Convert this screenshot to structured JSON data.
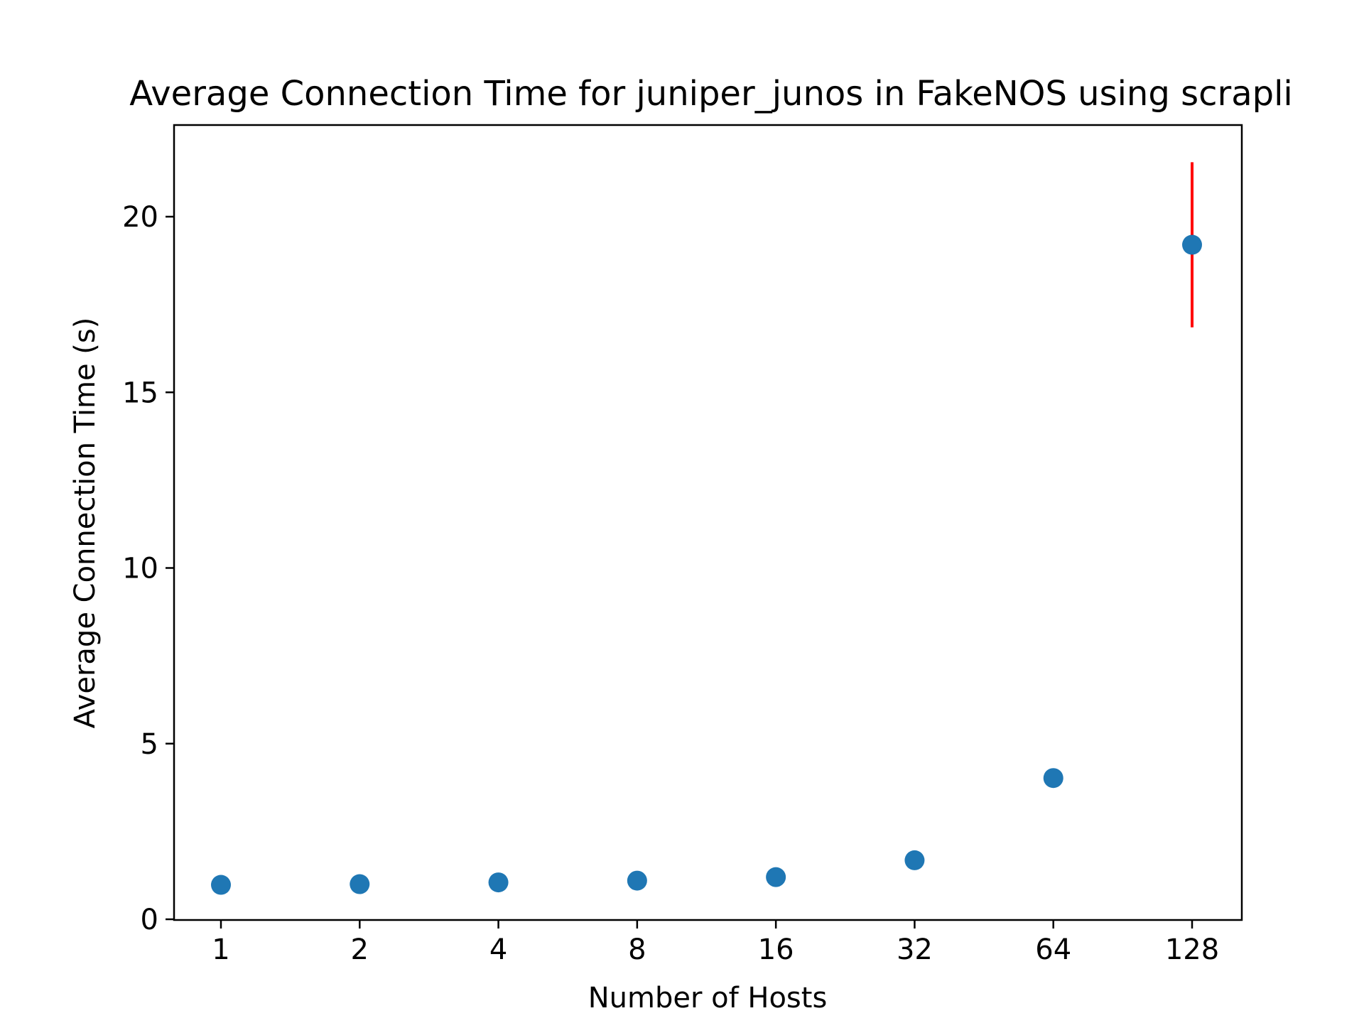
{
  "chart_data": {
    "type": "scatter",
    "title": "Average Connection Time for juniper_junos in FakeNOS using scrapli",
    "xlabel": "Number of Hosts",
    "ylabel": "Average Connection Time (s)",
    "x_scale": "log2",
    "x_ticks": [
      "1",
      "2",
      "4",
      "8",
      "16",
      "32",
      "64",
      "128"
    ],
    "y_ticks": [
      "0",
      "5",
      "10",
      "15",
      "20"
    ],
    "ylim": [
      0,
      22.6
    ],
    "x": [
      1,
      2,
      4,
      8,
      16,
      32,
      64,
      128
    ],
    "y": [
      0.98,
      1.0,
      1.05,
      1.1,
      1.2,
      1.68,
      4.02,
      19.2
    ],
    "error": [
      null,
      null,
      null,
      null,
      null,
      null,
      null,
      [
        16.85,
        21.55
      ]
    ],
    "marker_color": "#1f77b4",
    "error_color": "#ff0000",
    "grid": false
  }
}
